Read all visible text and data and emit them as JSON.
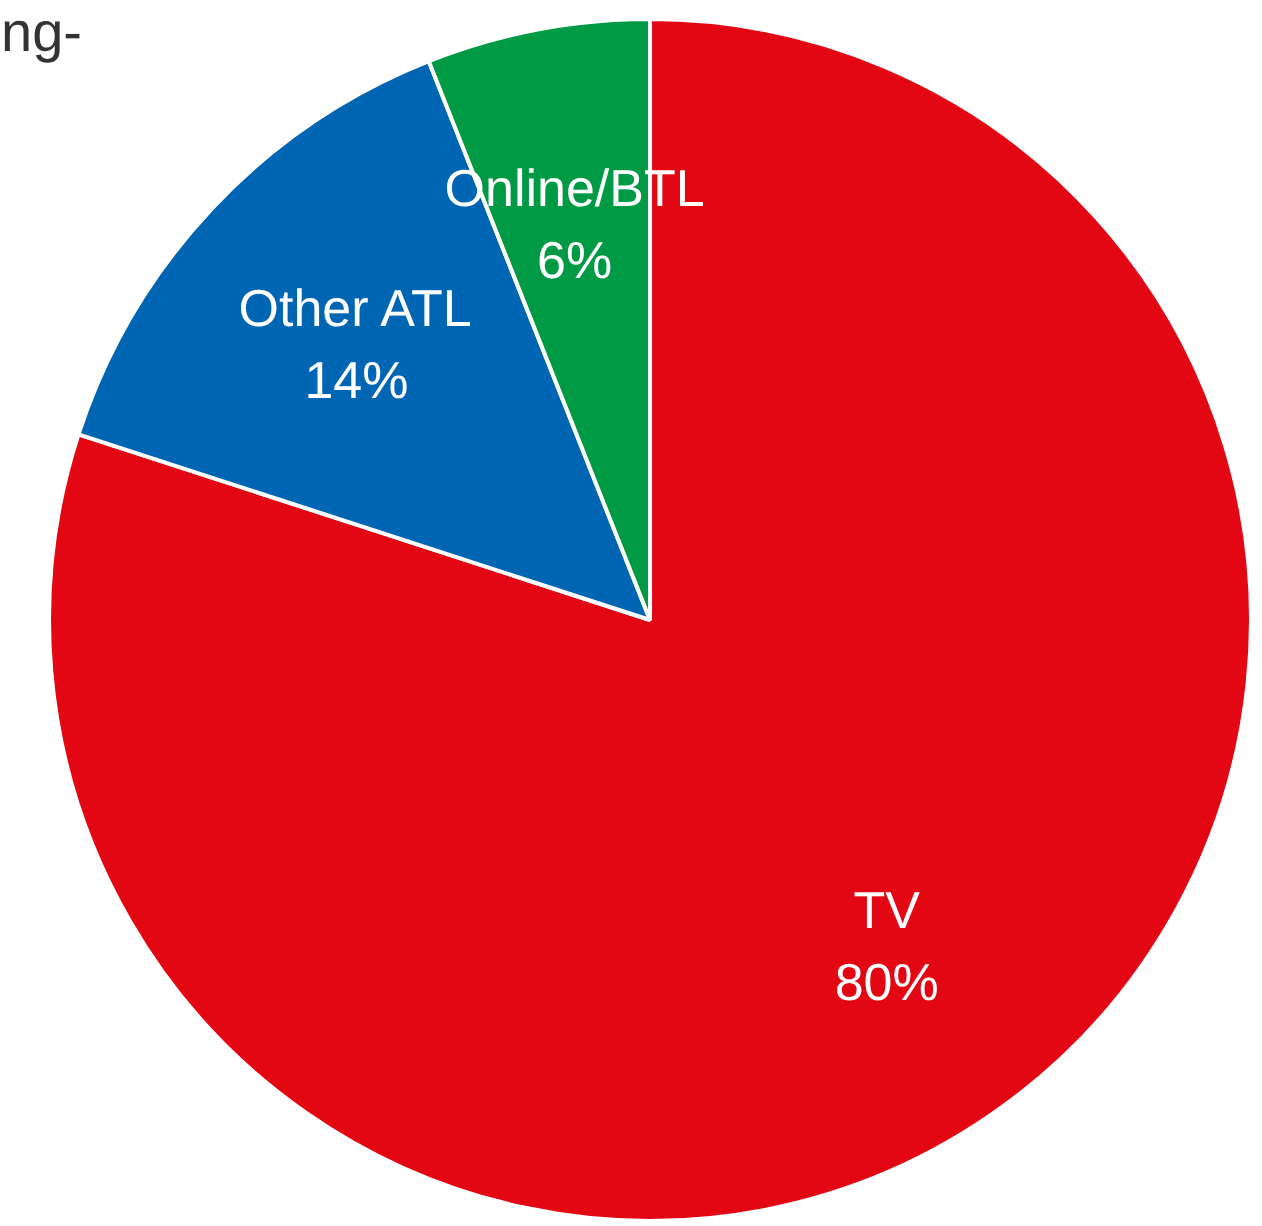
{
  "chart_data": {
    "type": "pie",
    "title": "ng-",
    "categories": [
      "TV",
      "Other ATL",
      "Online/BTL"
    ],
    "values": [
      80,
      14,
      6
    ],
    "colors": [
      "#e30613",
      "#0066b3",
      "#009a44"
    ],
    "value_labels": [
      "80%",
      "14%",
      "6%"
    ]
  }
}
